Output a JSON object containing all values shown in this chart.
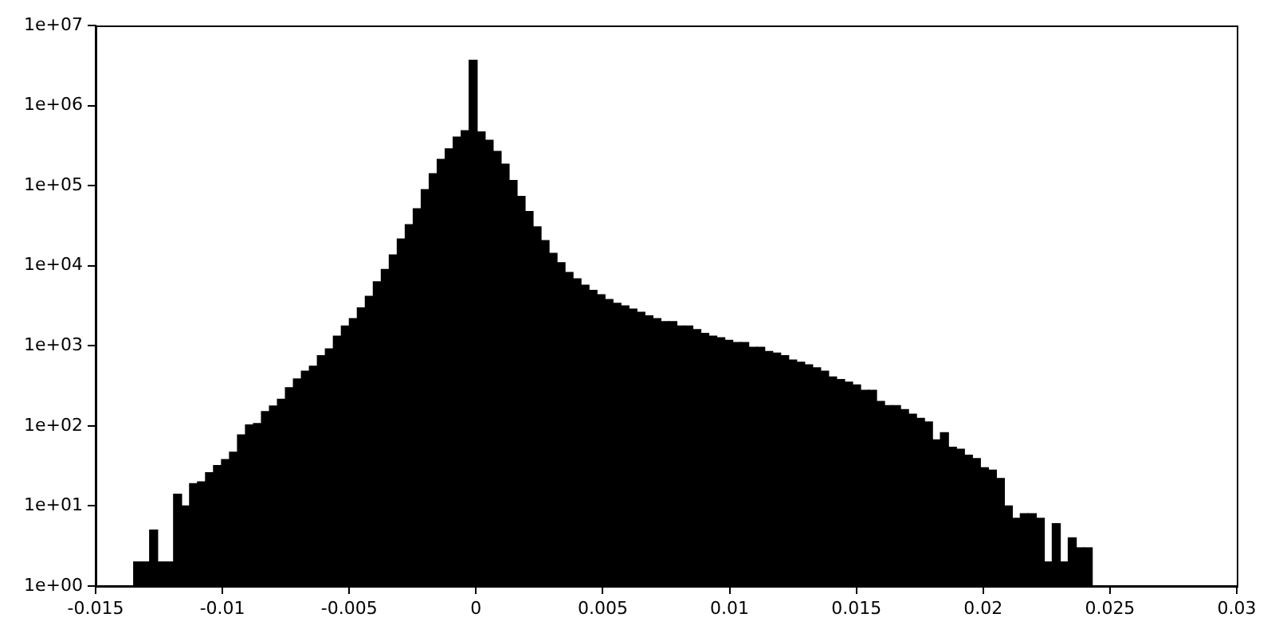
{
  "chart_data": {
    "type": "histogram",
    "color": "#000000",
    "log": "y",
    "bins": [
      -0.0135,
      -0.013185,
      -0.01287,
      -0.012555,
      -0.01224,
      -0.011925,
      -0.01161,
      -0.011295,
      -0.01098,
      -0.010665,
      -0.01035,
      -0.010035,
      -0.00972,
      -0.009405,
      -0.00909,
      -0.008775,
      -0.00846,
      -0.008145,
      -0.00783,
      -0.007515,
      -0.0072,
      -0.006885,
      -0.00657,
      -0.006255,
      -0.00594,
      -0.005625,
      -0.00531,
      -0.004995,
      -0.00468,
      -0.004365,
      -0.00405,
      -0.003735,
      -0.00342,
      -0.003105,
      -0.00279,
      -0.002475,
      -0.00216,
      -0.001845,
      -0.00153,
      -0.001215,
      -0.0009,
      -0.000585,
      -0.00027,
      4.5e-05,
      0.00036,
      0.000675,
      0.00099,
      0.001305,
      0.00162,
      0.001935,
      0.00225,
      0.002565,
      0.00288,
      0.003195,
      0.00351,
      0.003825,
      0.00414,
      0.004455,
      0.00477,
      0.005085,
      0.0054,
      0.005715,
      0.00603,
      0.006345,
      0.00666,
      0.006975,
      0.00729,
      0.007605,
      0.00792,
      0.008235,
      0.00855,
      0.008865,
      0.00918,
      0.009495,
      0.00981,
      0.010125,
      0.01044,
      0.010755,
      0.01107,
      0.011385,
      0.0117,
      0.012015,
      0.01233,
      0.012645,
      0.01296,
      0.013275,
      0.01359,
      0.013905,
      0.01422,
      0.014535,
      0.01485,
      0.015165,
      0.01548,
      0.015795,
      0.01611,
      0.016425,
      0.01674,
      0.017055,
      0.01737,
      0.017685,
      0.018,
      0.018315,
      0.01863,
      0.018945,
      0.01926,
      0.019575,
      0.01989,
      0.020205,
      0.02052,
      0.020835,
      0.02115,
      0.021465,
      0.02178,
      0.022095,
      0.02241,
      0.022725,
      0.02304,
      0.023355,
      0.02367,
      0.023985,
      0.0243
    ],
    "values": [
      2,
      2,
      5,
      2,
      2,
      14,
      10,
      19,
      20,
      26,
      32,
      38,
      47,
      77,
      103,
      107,
      151,
      177,
      215,
      300,
      385,
      483,
      555,
      752,
      916,
      1320,
      1770,
      2190,
      2970,
      4150,
      6300,
      9000,
      13600,
      21600,
      32600,
      51500,
      89200,
      141000,
      213000,
      289000,
      404000,
      485000,
      3690000,
      470000,
      369000,
      267000,
      185000,
      116000,
      73200,
      47600,
      30600,
      20600,
      14300,
      10900,
      8260,
      6870,
      5720,
      4910,
      4350,
      3790,
      3400,
      3150,
      2880,
      2630,
      2360,
      2190,
      2000,
      2000,
      1770,
      1770,
      1590,
      1430,
      1320,
      1260,
      1170,
      1100,
      1100,
      960,
      960,
      850,
      811,
      752,
      665,
      625,
      580,
      530,
      483,
      408,
      379,
      351,
      324,
      279,
      279,
      202,
      179,
      179,
      160,
      140,
      124,
      112,
      67,
      82,
      54,
      51,
      43,
      39,
      30,
      28,
      22,
      10,
      7,
      8,
      8,
      7,
      2,
      6,
      2,
      4,
      3,
      3
    ],
    "xlim": [
      -0.015,
      0.03
    ],
    "xticks": [
      -0.015,
      -0.01,
      -0.005,
      0,
      0.005,
      0.01,
      0.015,
      0.02,
      0.025,
      0.03
    ],
    "ylim": [
      1,
      10000000
    ],
    "yticks": [
      {
        "value": 1,
        "label": "1e+00"
      },
      {
        "value": 10,
        "label": "1e+01"
      },
      {
        "value": 100,
        "label": "1e+02"
      },
      {
        "value": 1000,
        "label": "1e+03"
      },
      {
        "value": 10000,
        "label": "1e+04"
      },
      {
        "value": 100000,
        "label": "1e+05"
      },
      {
        "value": 1000000,
        "label": "1e+06"
      },
      {
        "value": 10000000,
        "label": "1e+07"
      }
    ]
  }
}
